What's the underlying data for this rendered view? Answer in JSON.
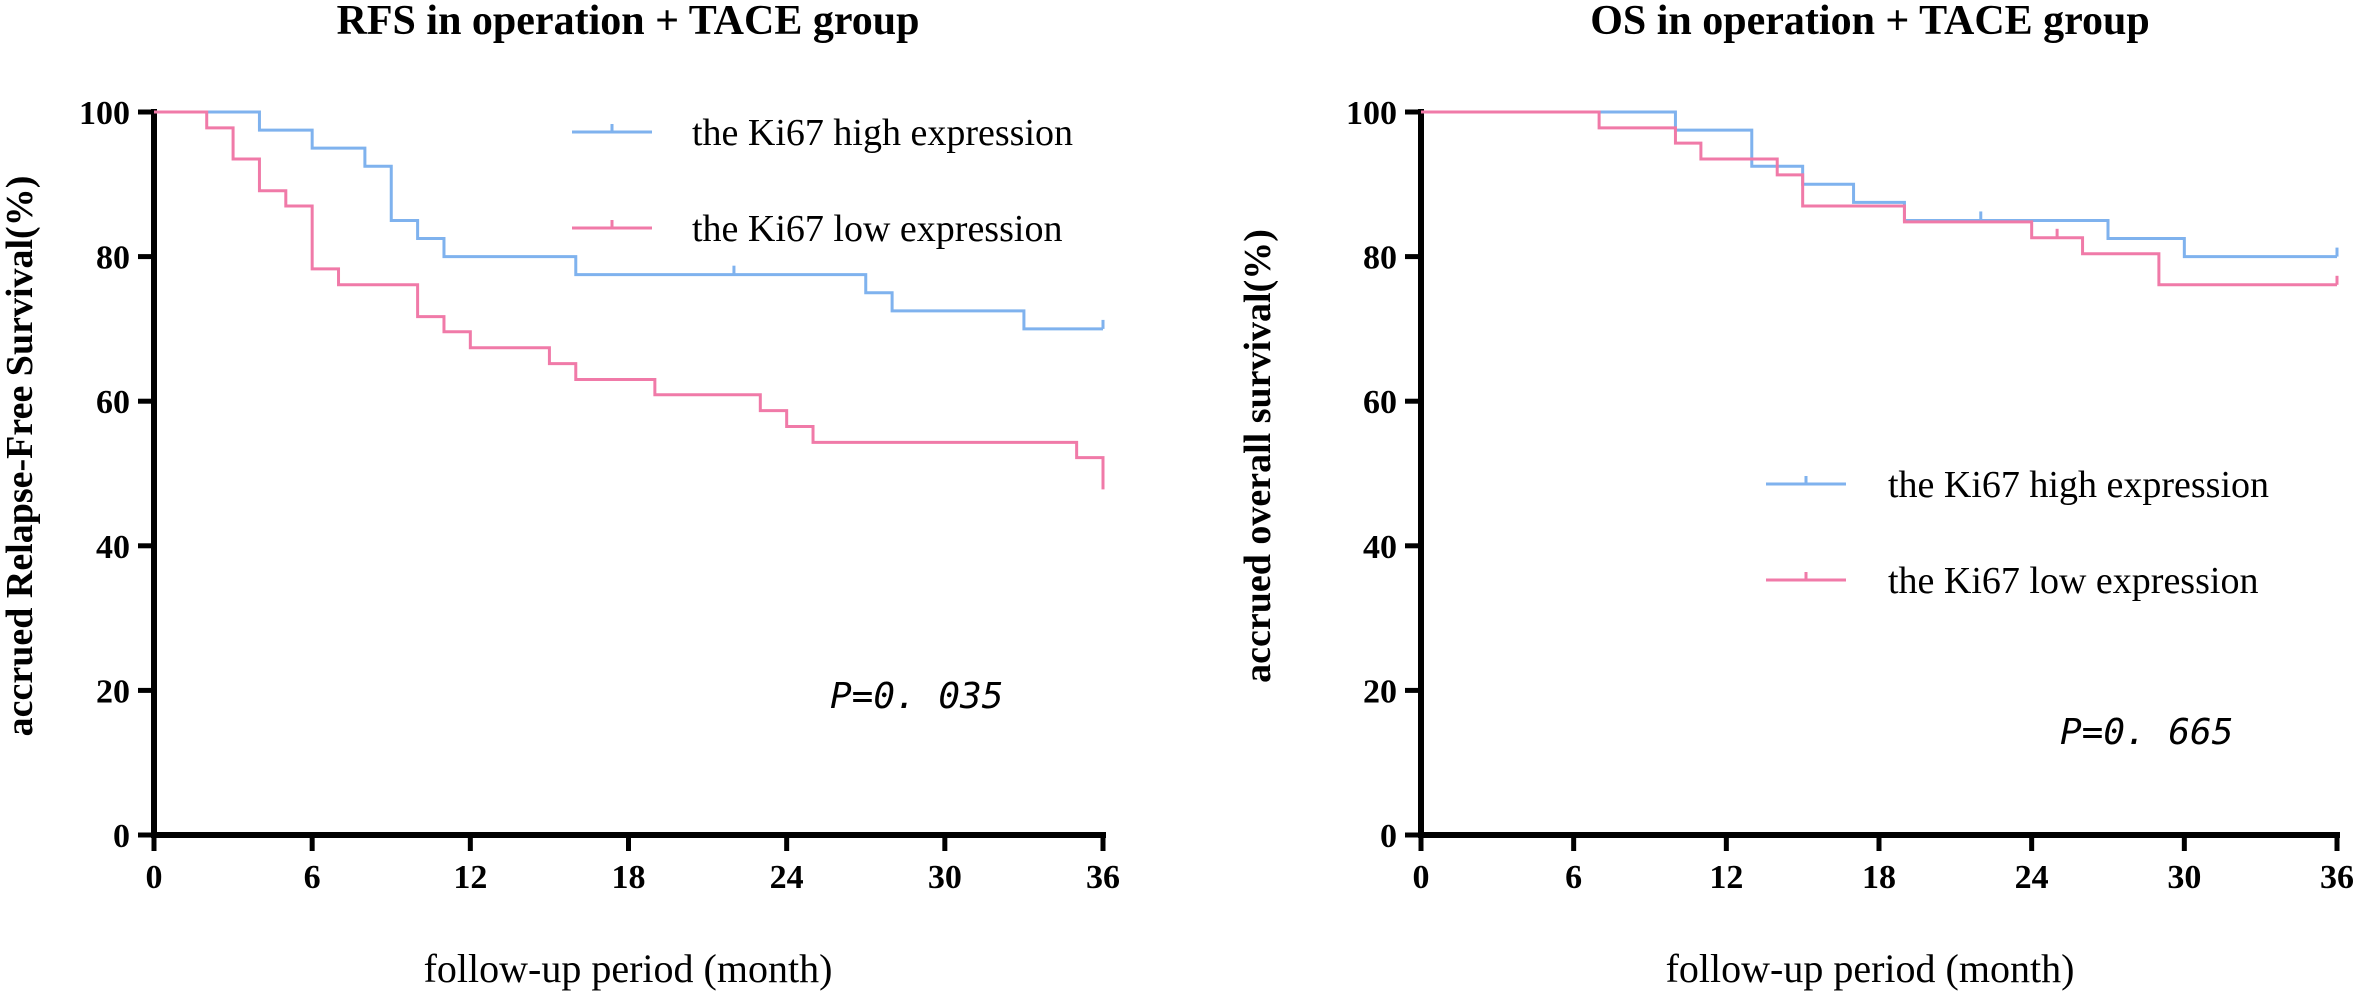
{
  "chart_data": [
    {
      "type": "line",
      "subtype": "kaplan-meier",
      "title": "RFS in operation + TACE group",
      "xlabel": "follow-up period (month)",
      "ylabel": "accrued Relapse-Free Survival(%)",
      "xlim": [
        0,
        36
      ],
      "ylim": [
        0,
        100
      ],
      "xticks": [
        0,
        6,
        12,
        18,
        24,
        30,
        36
      ],
      "yticks": [
        0,
        20,
        40,
        60,
        80,
        100
      ],
      "legend_position": "top-right",
      "annotation": "P=0. 035",
      "series": [
        {
          "name": "the Ki67 high expression",
          "color": "#7fb2ee",
          "steps": [
            [
              0,
              100
            ],
            [
              4,
              97.5
            ],
            [
              6,
              95
            ],
            [
              8,
              92.5
            ],
            [
              9,
              85
            ],
            [
              10,
              82.5
            ],
            [
              11,
              80
            ],
            [
              16,
              77.5
            ],
            [
              27,
              75
            ],
            [
              28,
              72.5
            ],
            [
              33,
              70
            ],
            [
              36,
              70
            ]
          ],
          "censored": [
            [
              22,
              77.5
            ],
            [
              36,
              70
            ]
          ]
        },
        {
          "name": "the Ki67 low expression",
          "color": "#f07aa8",
          "steps": [
            [
              0,
              100
            ],
            [
              2,
              97.8
            ],
            [
              3,
              93.5
            ],
            [
              4,
              89.1
            ],
            [
              5,
              87
            ],
            [
              6,
              78.3
            ],
            [
              7,
              76.1
            ],
            [
              10,
              71.7
            ],
            [
              11,
              69.6
            ],
            [
              12,
              67.4
            ],
            [
              15,
              65.2
            ],
            [
              16,
              63
            ],
            [
              19,
              60.9
            ],
            [
              23,
              58.7
            ],
            [
              24,
              56.5
            ],
            [
              25,
              54.3
            ],
            [
              35,
              52.2
            ],
            [
              36,
              47.8
            ]
          ],
          "censored": []
        }
      ]
    },
    {
      "type": "line",
      "subtype": "kaplan-meier",
      "title": "OS in operation + TACE group",
      "xlabel": "follow-up period (month)",
      "ylabel": "accrued overall survival(%)",
      "xlim": [
        0,
        36
      ],
      "ylim": [
        0,
        100
      ],
      "xticks": [
        0,
        6,
        12,
        18,
        24,
        30,
        36
      ],
      "yticks": [
        0,
        20,
        40,
        60,
        80,
        100
      ],
      "legend_position": "right",
      "annotation": "P=0. 665",
      "series": [
        {
          "name": "the Ki67 high expression",
          "color": "#7fb2ee",
          "steps": [
            [
              0,
              100
            ],
            [
              10,
              97.5
            ],
            [
              13,
              92.5
            ],
            [
              15,
              90
            ],
            [
              17,
              87.5
            ],
            [
              19,
              85
            ],
            [
              27,
              82.5
            ],
            [
              30,
              80
            ],
            [
              36,
              80
            ]
          ],
          "censored": [
            [
              22,
              85
            ],
            [
              36,
              80
            ]
          ]
        },
        {
          "name": "the Ki67 low expression",
          "color": "#f07aa8",
          "steps": [
            [
              0,
              100
            ],
            [
              7,
              97.8
            ],
            [
              10,
              95.7
            ],
            [
              11,
              93.5
            ],
            [
              14,
              91.3
            ],
            [
              15,
              87
            ],
            [
              19,
              84.8
            ],
            [
              24,
              82.6
            ],
            [
              26,
              80.4
            ],
            [
              29,
              76.1
            ],
            [
              36,
              76.1
            ]
          ],
          "censored": [
            [
              25,
              82.6
            ],
            [
              36,
              76.1
            ]
          ]
        }
      ]
    }
  ]
}
